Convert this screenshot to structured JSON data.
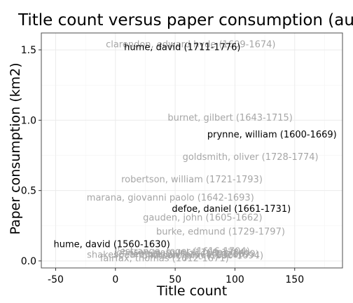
{
  "chart_data": {
    "type": "scatter",
    "title": "Title count versus paper consumption (author",
    "xlabel": "Title count",
    "ylabel": "Paper consumption (km2)",
    "xlim": [
      -62,
      190
    ],
    "ylim": [
      -0.05,
      1.62
    ],
    "xticks": [
      "-50",
      "0",
      "50",
      "100",
      "150"
    ],
    "yticks": [
      "0.0",
      "0.5",
      "1.0",
      "1.5"
    ],
    "grid": true,
    "marker": "text-label",
    "colors": {
      "highlight": "#000000",
      "muted": "#a6a6a6"
    },
    "points": [
      {
        "label": "clarendon, edward hyde (1609-1674)",
        "x": 63,
        "y": 1.54,
        "highlight": false
      },
      {
        "label": "hume, david (1711-1776)",
        "x": 56,
        "y": 1.52,
        "highlight": true
      },
      {
        "label": "burnet, gilbert (1643-1715)",
        "x": 96,
        "y": 1.02,
        "highlight": false
      },
      {
        "label": "prynne, william (1600-1669)",
        "x": 131,
        "y": 0.9,
        "highlight": true
      },
      {
        "label": "goldsmith, oliver (1728-1774)",
        "x": 113,
        "y": 0.74,
        "highlight": false
      },
      {
        "label": "robertson, william (1721-1793)",
        "x": 64,
        "y": 0.58,
        "highlight": false
      },
      {
        "label": "marana, giovanni paolo (1642-1693)",
        "x": 46,
        "y": 0.45,
        "highlight": false
      },
      {
        "label": "defoe, daniel (1661-1731)",
        "x": 97,
        "y": 0.37,
        "highlight": true
      },
      {
        "label": "gauden, john (1605-1662)",
        "x": 73,
        "y": 0.31,
        "highlight": false
      },
      {
        "label": "burke, edmund (1729-1797)",
        "x": 88,
        "y": 0.21,
        "highlight": false
      },
      {
        "label": "hume, david (1560-1630)",
        "x": -3,
        "y": 0.12,
        "highlight": true
      },
      {
        "label": "l'estrange, roger (1616-1704)",
        "x": 56,
        "y": 0.07,
        "highlight": false
      },
      {
        "label": "johnson, samuel (1709-1784)",
        "x": 55,
        "y": 0.06,
        "highlight": false
      },
      {
        "label": "shakespeare, william (1564-1616)",
        "x": 41,
        "y": 0.045,
        "highlight": false
      },
      {
        "label": "temple, william (1628-1699)",
        "x": 66,
        "y": 0.05,
        "highlight": false
      },
      {
        "label": "tillotson, john (1630-1694)",
        "x": 73,
        "y": 0.04,
        "highlight": false
      },
      {
        "label": "fairfax, thomas (1612-1671)",
        "x": 41,
        "y": 0.02,
        "highlight": false
      }
    ]
  }
}
